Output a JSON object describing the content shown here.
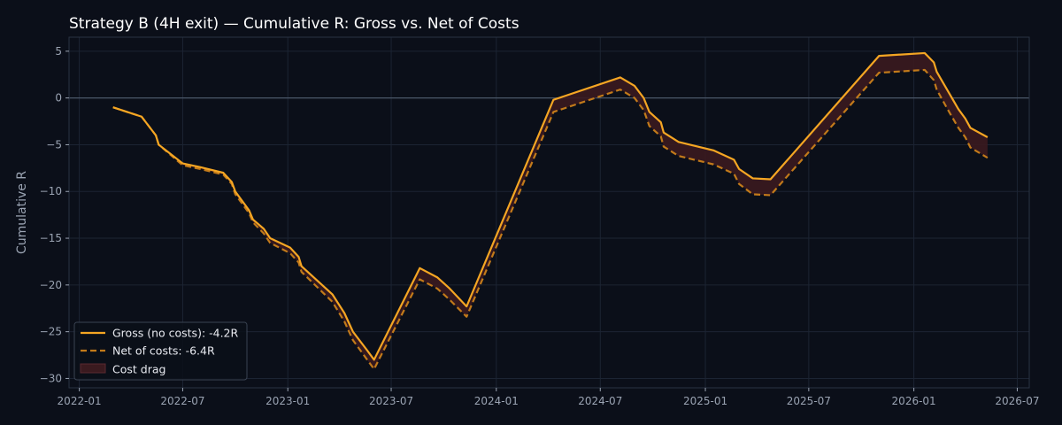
{
  "chart_data": {
    "type": "line",
    "title": "Strategy B (4H exit) — Cumulative R: Gross vs. Net of Costs",
    "xlabel": "",
    "ylabel": "Cumulative R",
    "ylim": [
      -31,
      6.5
    ],
    "xlim": [
      "2021-12-14",
      "2026-07-22"
    ],
    "yticks": [
      5,
      0,
      -5,
      -10,
      -15,
      -20,
      -25,
      -30
    ],
    "xticks": [
      "2022-01",
      "2022-07",
      "2023-01",
      "2023-07",
      "2024-01",
      "2024-07",
      "2025-01",
      "2025-07",
      "2026-01",
      "2026-07"
    ],
    "grid": true,
    "zero_line": true,
    "legend_position": "bottom-left",
    "colors": {
      "background": "#0b0f19",
      "grid": "#1c2433",
      "zero_line": "#4a5668",
      "gross": "#f5a623",
      "net": "#c27a1a",
      "cost_drag": "#3a1a1f"
    },
    "series": [
      {
        "name": "Gross (no costs): -4.2R",
        "style": "solid",
        "points": [
          [
            "2022-03-01",
            -1.0
          ],
          [
            "2022-04-20",
            -2.0
          ],
          [
            "2022-05-15",
            -4.0
          ],
          [
            "2022-05-20",
            -5.0
          ],
          [
            "2022-06-10",
            -6.0
          ],
          [
            "2022-07-01",
            -7.0
          ],
          [
            "2022-08-01",
            -7.4
          ],
          [
            "2022-09-10",
            -8.0
          ],
          [
            "2022-09-25",
            -9.0
          ],
          [
            "2022-10-01",
            -10.0
          ],
          [
            "2022-10-25",
            -12.0
          ],
          [
            "2022-11-01",
            -13.0
          ],
          [
            "2022-11-20",
            -14.0
          ],
          [
            "2022-12-01",
            -15.0
          ],
          [
            "2023-01-05",
            -16.0
          ],
          [
            "2023-01-20",
            -17.0
          ],
          [
            "2023-01-25",
            -18.0
          ],
          [
            "2023-03-20",
            -21.0
          ],
          [
            "2023-04-10",
            -23.0
          ],
          [
            "2023-04-25",
            -25.0
          ],
          [
            "2023-05-20",
            -27.0
          ],
          [
            "2023-06-01",
            -28.0
          ],
          [
            "2023-08-20",
            -18.2
          ],
          [
            "2023-09-20",
            -19.2
          ],
          [
            "2023-10-10",
            -20.3
          ],
          [
            "2023-11-10",
            -22.3
          ],
          [
            "2024-04-10",
            -0.2
          ],
          [
            "2024-08-05",
            2.2
          ],
          [
            "2024-08-30",
            1.3
          ],
          [
            "2024-09-15",
            0.0
          ],
          [
            "2024-09-25",
            -1.5
          ],
          [
            "2024-10-15",
            -2.6
          ],
          [
            "2024-10-20",
            -3.7
          ],
          [
            "2024-11-15",
            -4.7
          ],
          [
            "2025-01-15",
            -5.6
          ],
          [
            "2025-02-20",
            -6.6
          ],
          [
            "2025-03-01",
            -7.6
          ],
          [
            "2025-03-25",
            -8.6
          ],
          [
            "2025-04-25",
            -8.7
          ],
          [
            "2025-11-01",
            4.5
          ],
          [
            "2026-01-20",
            4.8
          ],
          [
            "2026-02-05",
            3.8
          ],
          [
            "2026-02-10",
            2.8
          ],
          [
            "2026-03-01",
            0.8
          ],
          [
            "2026-03-20",
            -1.2
          ],
          [
            "2026-04-01",
            -2.2
          ],
          [
            "2026-04-10",
            -3.2
          ],
          [
            "2026-05-10",
            -4.2
          ]
        ]
      },
      {
        "name": "Net of costs: -6.4R",
        "style": "dashed",
        "points": [
          [
            "2022-03-01",
            -1.0
          ],
          [
            "2022-04-20",
            -2.0
          ],
          [
            "2022-05-15",
            -4.0
          ],
          [
            "2022-05-20",
            -5.0
          ],
          [
            "2022-06-10",
            -6.1
          ],
          [
            "2022-07-01",
            -7.2
          ],
          [
            "2022-08-01",
            -7.6
          ],
          [
            "2022-09-10",
            -8.2
          ],
          [
            "2022-09-25",
            -9.2
          ],
          [
            "2022-10-01",
            -10.3
          ],
          [
            "2022-10-25",
            -12.3
          ],
          [
            "2022-11-01",
            -13.3
          ],
          [
            "2022-11-20",
            -14.5
          ],
          [
            "2022-12-01",
            -15.5
          ],
          [
            "2023-01-05",
            -16.6
          ],
          [
            "2023-01-20",
            -17.6
          ],
          [
            "2023-01-25",
            -18.6
          ],
          [
            "2023-03-20",
            -21.8
          ],
          [
            "2023-04-10",
            -23.9
          ],
          [
            "2023-04-25",
            -25.9
          ],
          [
            "2023-05-20",
            -28.0
          ],
          [
            "2023-06-01",
            -29.0
          ],
          [
            "2023-08-20",
            -19.4
          ],
          [
            "2023-09-20",
            -20.4
          ],
          [
            "2023-10-10",
            -21.5
          ],
          [
            "2023-11-10",
            -23.4
          ],
          [
            "2024-04-10",
            -1.5
          ],
          [
            "2024-08-05",
            0.9
          ],
          [
            "2024-08-30",
            0.0
          ],
          [
            "2024-09-15",
            -1.3
          ],
          [
            "2024-09-25",
            -3.0
          ],
          [
            "2024-10-15",
            -4.1
          ],
          [
            "2024-10-20",
            -5.2
          ],
          [
            "2024-11-15",
            -6.2
          ],
          [
            "2025-01-15",
            -7.1
          ],
          [
            "2025-02-20",
            -8.1
          ],
          [
            "2025-03-01",
            -9.2
          ],
          [
            "2025-03-25",
            -10.3
          ],
          [
            "2025-04-25",
            -10.4
          ],
          [
            "2025-11-01",
            2.7
          ],
          [
            "2026-01-20",
            3.0
          ],
          [
            "2026-02-05",
            1.9
          ],
          [
            "2026-02-10",
            0.9
          ],
          [
            "2026-03-01",
            -1.2
          ],
          [
            "2026-03-20",
            -3.2
          ],
          [
            "2026-04-01",
            -4.2
          ],
          [
            "2026-04-10",
            -5.3
          ],
          [
            "2026-05-10",
            -6.4
          ]
        ]
      }
    ],
    "fill_between": {
      "name": "Cost drag",
      "between": [
        "Gross (no costs): -4.2R",
        "Net of costs: -6.4R"
      ]
    }
  }
}
